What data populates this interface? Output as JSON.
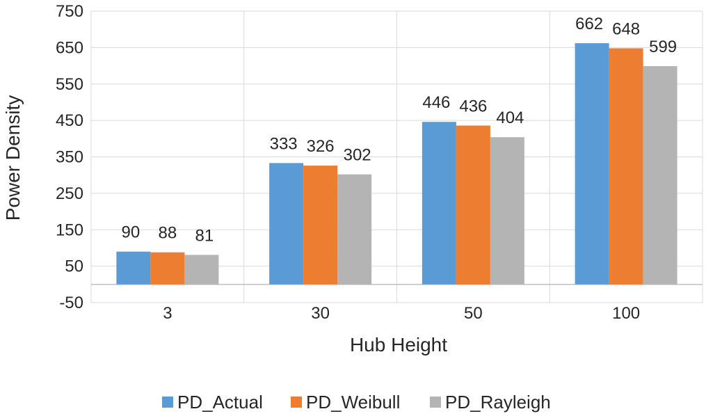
{
  "chart_data": {
    "type": "bar",
    "title": "",
    "xlabel": "Hub Height",
    "ylabel": "Power Density",
    "categories": [
      "3",
      "30",
      "50",
      "100"
    ],
    "series": [
      {
        "name": "PD_Actual",
        "color": "#5B9BD5",
        "values": [
          90,
          333,
          446,
          662
        ]
      },
      {
        "name": "PD_Weibull",
        "color": "#ED7D31",
        "values": [
          88,
          326,
          436,
          648
        ]
      },
      {
        "name": "PD_Rayleigh",
        "color": "#B4B4B4",
        "values": [
          81,
          302,
          404,
          599
        ]
      }
    ],
    "ylim": [
      -50,
      750
    ],
    "yticks": [
      -50,
      50,
      150,
      250,
      350,
      450,
      550,
      650,
      750
    ],
    "grid": true,
    "legend_position": "bottom"
  }
}
